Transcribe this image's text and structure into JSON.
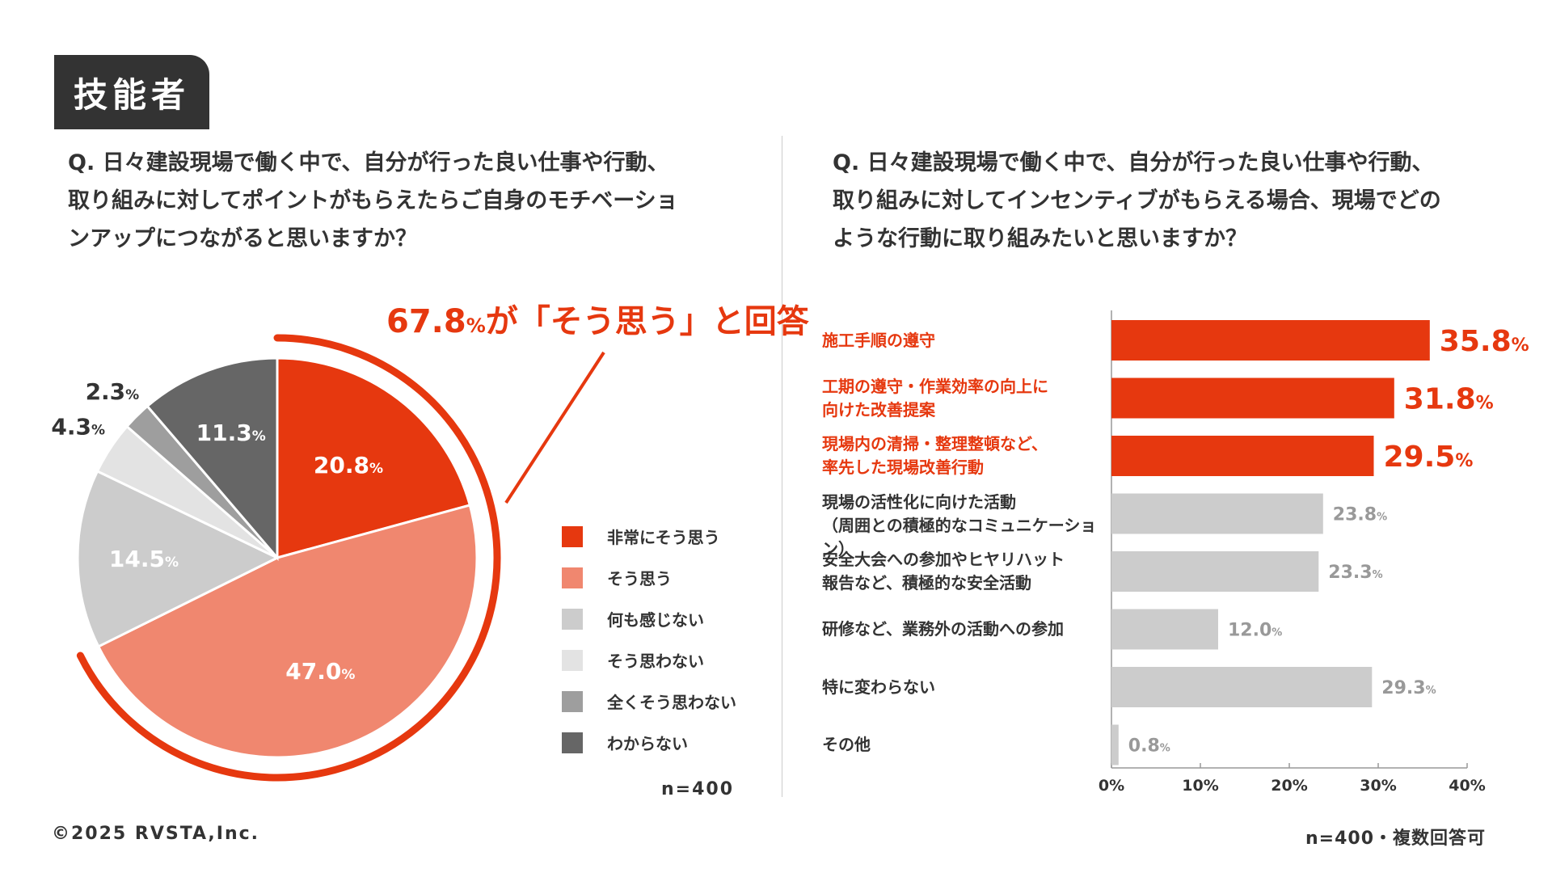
{
  "badge": "技能者",
  "left_question": [
    "Q. 日々建設現場で働く中で、自分が行った良い仕事や行動、",
    "取り組みに対してポイントがもらえたらご自身のモチベーショ",
    "ンアップにつながると思いますか？"
  ],
  "right_question": [
    "Q. 日々建設現場で働く中で、自分が行った良い仕事や行動、",
    "取り組みに対してインセンティブがもらえる場合、現場でどの",
    "ような行動に取り組みたいと思いますか？"
  ],
  "callout": {
    "value": "67.8",
    "unit": "%",
    "text": "が「そう思う」と回答"
  },
  "n_left": "n=400",
  "n_right": "n=400・複数回答可",
  "copyright": "©2025 RVSTA,Inc.",
  "colors": {
    "red": "#e6380f",
    "salmon": "#f0876f",
    "gray_light": "#cccccc",
    "gray_lighter": "#e3e3e3",
    "gray_mid": "#9e9e9e",
    "gray_dark": "#666666"
  },
  "chart_data": [
    {
      "type": "pie",
      "title": "",
      "slices": [
        {
          "label": "非常にそう思う",
          "value": 20.8,
          "display": "20.8",
          "color": "#e6380f"
        },
        {
          "label": "そう思う",
          "value": 47.0,
          "display": "47.0",
          "color": "#f0876f"
        },
        {
          "label": "何も感じない",
          "value": 14.5,
          "display": "14.5",
          "color": "#cccccc"
        },
        {
          "label": "そう思わない",
          "value": 4.3,
          "display": "4.3",
          "color": "#e3e3e3"
        },
        {
          "label": "全くそう思わない",
          "value": 2.3,
          "display": "2.3",
          "color": "#9e9e9e"
        },
        {
          "label": "わからない",
          "value": 11.3,
          "display": "11.3",
          "color": "#666666"
        }
      ],
      "unit": "%",
      "legend_position": "right"
    },
    {
      "type": "bar",
      "orientation": "horizontal",
      "categories": [
        [
          "施工手順の遵守"
        ],
        [
          "工期の遵守・作業効率の向上に",
          "向けた改善提案"
        ],
        [
          "現場内の清掃・整理整頓など、",
          "率先した現場改善行動"
        ],
        [
          "現場の活性化に向けた活動",
          "（周囲との積極的なコミュニケーション）"
        ],
        [
          "安全大会への参加やヒヤリハット",
          "報告など、積極的な安全活動"
        ],
        [
          "研修など、業務外の活動への参加"
        ],
        [
          "特に変わらない"
        ],
        [
          "その他"
        ]
      ],
      "values": [
        35.8,
        31.8,
        29.5,
        23.8,
        23.3,
        12.0,
        29.3,
        0.8
      ],
      "value_labels": [
        "35.8",
        "31.8",
        "29.5",
        "23.8",
        "23.3",
        "12.0",
        "29.3",
        "0.8"
      ],
      "highlight": [
        true,
        true,
        true,
        false,
        false,
        false,
        false,
        false
      ],
      "unit": "%",
      "xlim": [
        0,
        40
      ],
      "xticks": [
        0,
        10,
        20,
        30,
        40
      ],
      "xtick_labels": [
        "0%",
        "10%",
        "20%",
        "30%",
        "40%"
      ],
      "grid": false
    }
  ]
}
